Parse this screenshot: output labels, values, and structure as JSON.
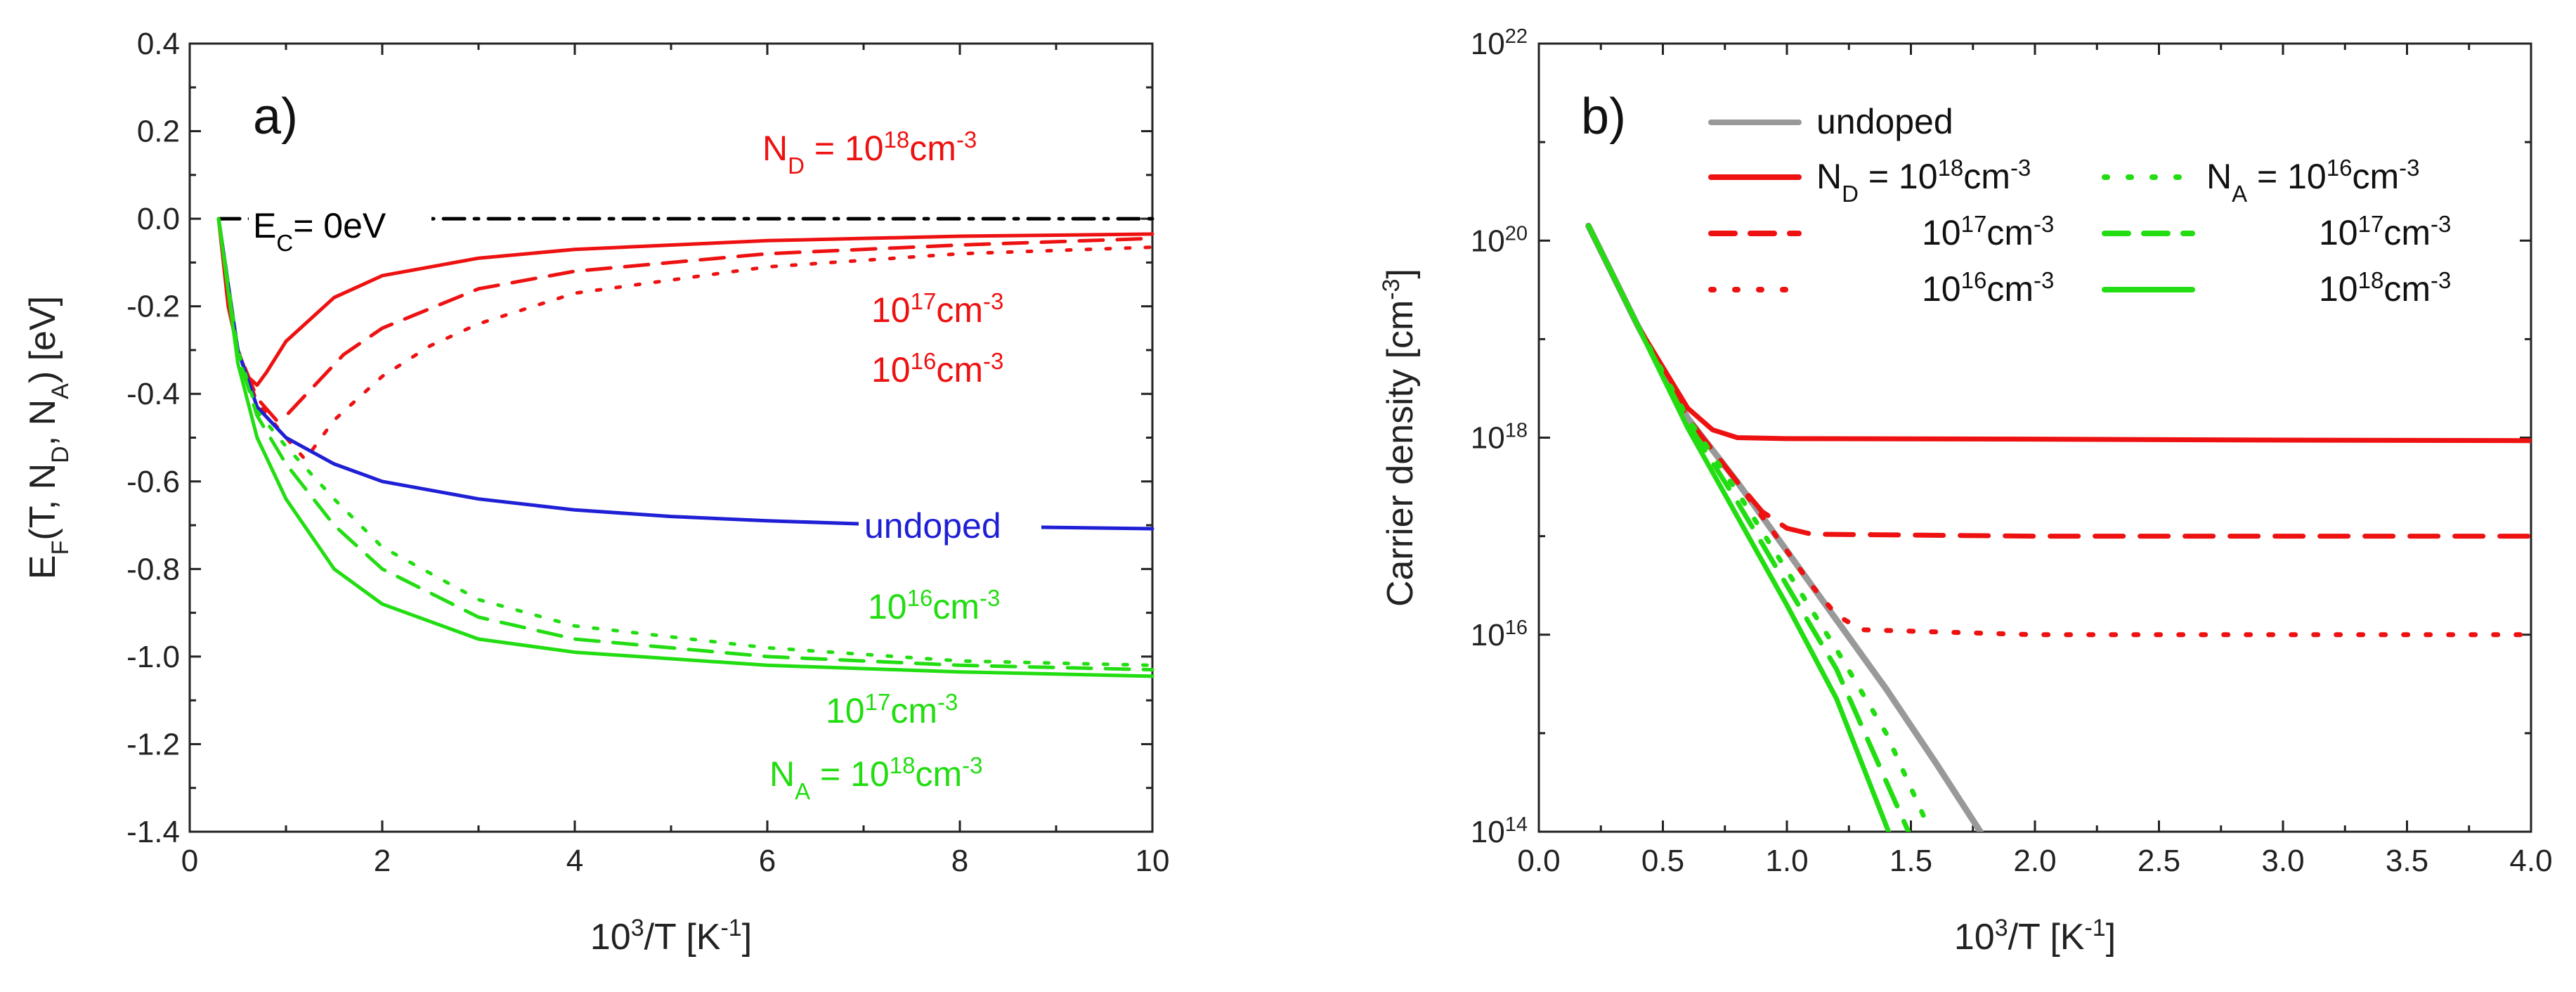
{
  "chart_data": [
    {
      "id": "a",
      "type": "line",
      "panel_label": "a)",
      "xlabel": {
        "base": "10",
        "sup": "3",
        "rest": "/T [K",
        "sup2": "-1",
        "end": "]"
      },
      "ylabel": {
        "pre": "E",
        "sub": "F",
        "mid": "(T, N",
        "sub2": "D",
        "mid2": ", N",
        "sub3": "A",
        "end": ") [eV]"
      },
      "xlim": [
        0,
        10
      ],
      "ylim": [
        -1.4,
        0.4
      ],
      "xticks": [
        "0",
        "2",
        "4",
        "6",
        "8",
        "10"
      ],
      "yticks": [
        "0.4",
        "0.2",
        "0.0",
        "-0.2",
        "-0.4",
        "-0.6",
        "-0.8",
        "-1.0",
        "-1.2",
        "-1.4"
      ],
      "colors": {
        "donor": "#ee1111",
        "acceptor": "#22dd11",
        "undoped": "#1f1fd6",
        "conduction": "#000000"
      },
      "series": [
        {
          "name": "E_C = 0eV",
          "color": "#000000",
          "style": "dashdot",
          "x": [
            0.3,
            10
          ],
          "y": [
            0.0,
            0.0
          ]
        },
        {
          "name": "N_D = 1e18",
          "color": "#ee1111",
          "style": "solid",
          "x": [
            0.3,
            0.4,
            0.5,
            0.6,
            0.7,
            0.8,
            1.0,
            1.5,
            2,
            3,
            4,
            6,
            8,
            10
          ],
          "y": [
            0.0,
            -0.2,
            -0.3,
            -0.36,
            -0.38,
            -0.35,
            -0.28,
            -0.18,
            -0.13,
            -0.09,
            -0.07,
            -0.05,
            -0.04,
            -0.035
          ]
        },
        {
          "name": "N_D = 1e17",
          "color": "#ee1111",
          "style": "dashed",
          "x": [
            0.3,
            0.5,
            0.7,
            0.9,
            1.0,
            1.3,
            1.6,
            2,
            3,
            4,
            6,
            8,
            10
          ],
          "y": [
            0.0,
            -0.3,
            -0.41,
            -0.46,
            -0.45,
            -0.38,
            -0.31,
            -0.25,
            -0.16,
            -0.12,
            -0.08,
            -0.06,
            -0.045
          ]
        },
        {
          "name": "N_D = 1e16",
          "color": "#ee1111",
          "style": "dotted",
          "x": [
            0.3,
            0.5,
            0.7,
            1.0,
            1.2,
            1.5,
            2,
            2.5,
            3,
            4,
            6,
            8,
            10
          ],
          "y": [
            0.0,
            -0.3,
            -0.42,
            -0.5,
            -0.55,
            -0.46,
            -0.36,
            -0.29,
            -0.24,
            -0.17,
            -0.11,
            -0.08,
            -0.065
          ]
        },
        {
          "name": "undoped",
          "color": "#1f1fd6",
          "style": "solid",
          "x": [
            0.3,
            0.5,
            0.7,
            1.0,
            1.5,
            2,
            3,
            4,
            5,
            6,
            7,
            8,
            9,
            10
          ],
          "y": [
            0.0,
            -0.3,
            -0.43,
            -0.5,
            -0.56,
            -0.6,
            -0.64,
            -0.665,
            -0.68,
            -0.69,
            -0.697,
            -0.702,
            -0.705,
            -0.708
          ]
        },
        {
          "name": "N_A = 1e16",
          "color": "#22dd11",
          "style": "dotted",
          "x": [
            0.3,
            0.5,
            0.7,
            1.0,
            1.5,
            2,
            3,
            4,
            6,
            8,
            10
          ],
          "y": [
            0.0,
            -0.3,
            -0.44,
            -0.52,
            -0.64,
            -0.75,
            -0.87,
            -0.93,
            -0.98,
            -1.01,
            -1.02
          ]
        },
        {
          "name": "N_A = 1e17",
          "color": "#22dd11",
          "style": "dashed",
          "x": [
            0.3,
            0.5,
            0.7,
            1.0,
            1.5,
            2,
            3,
            4,
            6,
            8,
            10
          ],
          "y": [
            0.0,
            -0.31,
            -0.45,
            -0.56,
            -0.7,
            -0.8,
            -0.91,
            -0.96,
            -1.0,
            -1.02,
            -1.03
          ]
        },
        {
          "name": "N_A = 1e18",
          "color": "#22dd11",
          "style": "solid",
          "x": [
            0.3,
            0.5,
            0.7,
            1.0,
            1.5,
            2,
            3,
            4,
            6,
            8,
            10
          ],
          "y": [
            0.0,
            -0.33,
            -0.5,
            -0.64,
            -0.8,
            -0.88,
            -0.96,
            -0.99,
            -1.02,
            -1.035,
            -1.045
          ]
        }
      ],
      "annotations": [
        {
          "base": "E",
          "sub": "C",
          "rest": "= 0eV",
          "color": "#000000"
        },
        {
          "base": "N",
          "sub": "D",
          "rest": " = 10",
          "sup": "18",
          "tail": "cm",
          "sup2": "-3",
          "color": "#ee1111"
        },
        {
          "base": "10",
          "sup": "17",
          "tail": "cm",
          "sup2": "-3",
          "color": "#ee1111"
        },
        {
          "base": "10",
          "sup": "16",
          "tail": "cm",
          "sup2": "-3",
          "color": "#ee1111"
        },
        {
          "base": "undoped",
          "color": "#1f1fd6"
        },
        {
          "base": "10",
          "sup": "16",
          "tail": "cm",
          "sup2": "-3",
          "color": "#22dd11"
        },
        {
          "base": "10",
          "sup": "17",
          "tail": "cm",
          "sup2": "-3",
          "color": "#22dd11"
        },
        {
          "base": "N",
          "sub": "A",
          "rest": " = 10",
          "sup": "18",
          "tail": "cm",
          "sup2": "-3",
          "color": "#22dd11"
        }
      ]
    },
    {
      "id": "b",
      "type": "line",
      "panel_label": "b)",
      "yscale": "log",
      "xlabel": {
        "base": "10",
        "sup": "3",
        "rest": "/T [K",
        "sup2": "-1",
        "end": "]"
      },
      "ylabel": {
        "pre": "Carrier density [cm",
        "sup": "-3",
        "end": "]"
      },
      "xlim": [
        0.0,
        4.0
      ],
      "ylim_exp": [
        14,
        22
      ],
      "xticks": [
        "0.0",
        "0.5",
        "1.0",
        "1.5",
        "2.0",
        "2.5",
        "3.0",
        "3.5",
        "4.0"
      ],
      "yticks": [
        {
          "base": "10",
          "sup": "22"
        },
        {
          "base": "10",
          "sup": "20"
        },
        {
          "base": "10",
          "sup": "18"
        },
        {
          "base": "10",
          "sup": "16"
        },
        {
          "base": "10",
          "sup": "14"
        }
      ],
      "series": [
        {
          "name": "undoped",
          "color": "#999999",
          "style": "solid",
          "x": [
            0.2,
            0.4,
            0.6,
            0.8,
            1.0,
            1.2,
            1.4,
            1.6,
            1.78
          ],
          "y_exp": [
            20.15,
            19.13,
            18.2,
            17.55,
            16.85,
            16.15,
            15.45,
            14.7,
            14.0
          ]
        },
        {
          "name": "N_D = 1e18",
          "color": "#ee1111",
          "style": "solid",
          "x": [
            0.2,
            0.4,
            0.6,
            0.7,
            0.8,
            1.0,
            2,
            3,
            4
          ],
          "y_exp": [
            20.15,
            19.13,
            18.3,
            18.08,
            18.0,
            17.99,
            17.985,
            17.975,
            17.97
          ]
        },
        {
          "name": "N_D = 1e17",
          "color": "#ee1111",
          "style": "dashed",
          "x": [
            0.2,
            0.4,
            0.6,
            0.8,
            0.9,
            1.0,
            1.1,
            2,
            3,
            4
          ],
          "y_exp": [
            20.15,
            19.13,
            18.2,
            17.55,
            17.25,
            17.08,
            17.02,
            17.0,
            17.0,
            17.0
          ]
        },
        {
          "name": "N_D = 1e16",
          "color": "#ee1111",
          "style": "dotted",
          "x": [
            0.2,
            0.4,
            0.6,
            0.8,
            1.0,
            1.1,
            1.2,
            1.3,
            2,
            3,
            4
          ],
          "y_exp": [
            20.15,
            19.13,
            18.2,
            17.55,
            16.85,
            16.5,
            16.2,
            16.05,
            16.0,
            16.0,
            16.0
          ]
        },
        {
          "name": "N_A = 1e16",
          "color": "#22dd11",
          "style": "dotted",
          "x": [
            0.2,
            0.4,
            0.6,
            0.8,
            1.0,
            1.2,
            1.4,
            1.58
          ],
          "y_exp": [
            20.15,
            19.13,
            18.2,
            17.45,
            16.65,
            15.85,
            15.0,
            14.0
          ]
        },
        {
          "name": "N_A = 1e17",
          "color": "#22dd11",
          "style": "dashed",
          "x": [
            0.2,
            0.4,
            0.6,
            0.8,
            1.0,
            1.2,
            1.49
          ],
          "y_exp": [
            20.15,
            19.13,
            18.15,
            17.35,
            16.5,
            15.65,
            14.0
          ]
        },
        {
          "name": "N_A = 1e18",
          "color": "#22dd11",
          "style": "solid",
          "x": [
            0.2,
            0.4,
            0.6,
            0.8,
            1.0,
            1.2,
            1.41
          ],
          "y_exp": [
            20.15,
            19.13,
            18.1,
            17.2,
            16.3,
            15.35,
            14.0
          ]
        }
      ],
      "legend": {
        "placement": "top-left",
        "entries": [
          {
            "color": "#999999",
            "style": "solid",
            "parts": [
              {
                "t": "undoped"
              }
            ]
          },
          {
            "color": "#ee1111",
            "style": "solid",
            "parts": [
              {
                "t": "N"
              },
              {
                "t": "D",
                "sub": true
              },
              {
                "t": " = 10"
              },
              {
                "t": "18",
                "sup": true
              },
              {
                "t": "cm"
              },
              {
                "t": "-3",
                "sup": true
              }
            ]
          },
          {
            "color": "#ee1111",
            "style": "dashed",
            "parts": [
              {
                "t": "10"
              },
              {
                "t": "17",
                "sup": true
              },
              {
                "t": "cm"
              },
              {
                "t": "-3",
                "sup": true
              }
            ]
          },
          {
            "color": "#ee1111",
            "style": "dotted",
            "parts": [
              {
                "t": "10"
              },
              {
                "t": "16",
                "sup": true
              },
              {
                "t": "cm"
              },
              {
                "t": "-3",
                "sup": true
              }
            ]
          },
          {
            "color": "#22dd11",
            "style": "dotted",
            "parts": [
              {
                "t": "N"
              },
              {
                "t": "A",
                "sub": true
              },
              {
                "t": " =  10"
              },
              {
                "t": "16",
                "sup": true
              },
              {
                "t": "cm"
              },
              {
                "t": "-3",
                "sup": true
              }
            ]
          },
          {
            "color": "#22dd11",
            "style": "dashed",
            "parts": [
              {
                "t": "10"
              },
              {
                "t": "17",
                "sup": true
              },
              {
                "t": "cm"
              },
              {
                "t": "-3",
                "sup": true
              }
            ]
          },
          {
            "color": "#22dd11",
            "style": "solid",
            "parts": [
              {
                "t": "10"
              },
              {
                "t": "18",
                "sup": true
              },
              {
                "t": "cm"
              },
              {
                "t": "-3",
                "sup": true
              }
            ]
          }
        ]
      }
    }
  ]
}
